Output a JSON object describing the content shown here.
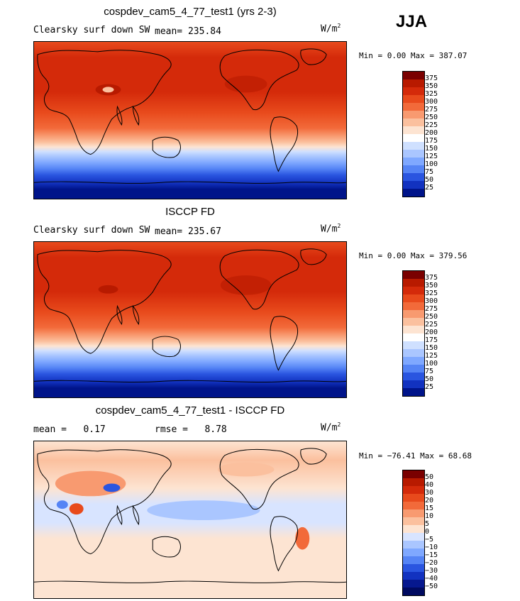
{
  "season": "JJA",
  "units": "W/m",
  "units_sup": "2",
  "panels": [
    {
      "title": "cospdev_cam5_4_77_test1 (yrs 2-3)",
      "left_label": "Clearsky surf down SW",
      "stat_label": "mean=",
      "stat_value": "235.84",
      "minmax": "Min =   0.00 Max = 387.07"
    },
    {
      "title": "ISCCP FD",
      "left_label": "Clearsky surf down SW",
      "stat_label": "mean=",
      "stat_value": "235.67",
      "minmax": "Min =   0.00 Max = 379.56"
    },
    {
      "title": "cospdev_cam5_4_77_test1 - ISCCP FD",
      "left_label": "mean =",
      "left_value": "0.17",
      "stat_label": "rmse =",
      "stat_value": "8.78",
      "minmax": "Min = −76.41 Max =  68.68"
    }
  ],
  "colorbar_abs": {
    "labels": [
      "375",
      "350",
      "325",
      "300",
      "275",
      "250",
      "225",
      "200",
      "175",
      "150",
      "125",
      "100",
      "75",
      "50",
      "25"
    ],
    "colors": [
      "#7a0000",
      "#b81a00",
      "#d42a0a",
      "#e84a1c",
      "#f26a3a",
      "#f89a70",
      "#fbc09e",
      "#fde4d2",
      "#ffffff",
      "#cfe0ff",
      "#aac6ff",
      "#7fa8ff",
      "#5584f5",
      "#2a55e0",
      "#1232c0",
      "#00148a"
    ]
  },
  "colorbar_diff": {
    "labels": [
      "50",
      "40",
      "30",
      "20",
      "15",
      "10",
      "5",
      "0",
      "−5",
      "−10",
      "−15",
      "−20",
      "−30",
      "−40",
      "−50"
    ],
    "colors": [
      "#7a0000",
      "#b81a00",
      "#d42a0a",
      "#e84a1c",
      "#f26a3a",
      "#f89a70",
      "#fbc09e",
      "#fde4d2",
      "#d8e4ff",
      "#aac6ff",
      "#7fa8ff",
      "#5584f5",
      "#2a55e0",
      "#1232c0",
      "#06188f",
      "#000a60"
    ]
  }
}
